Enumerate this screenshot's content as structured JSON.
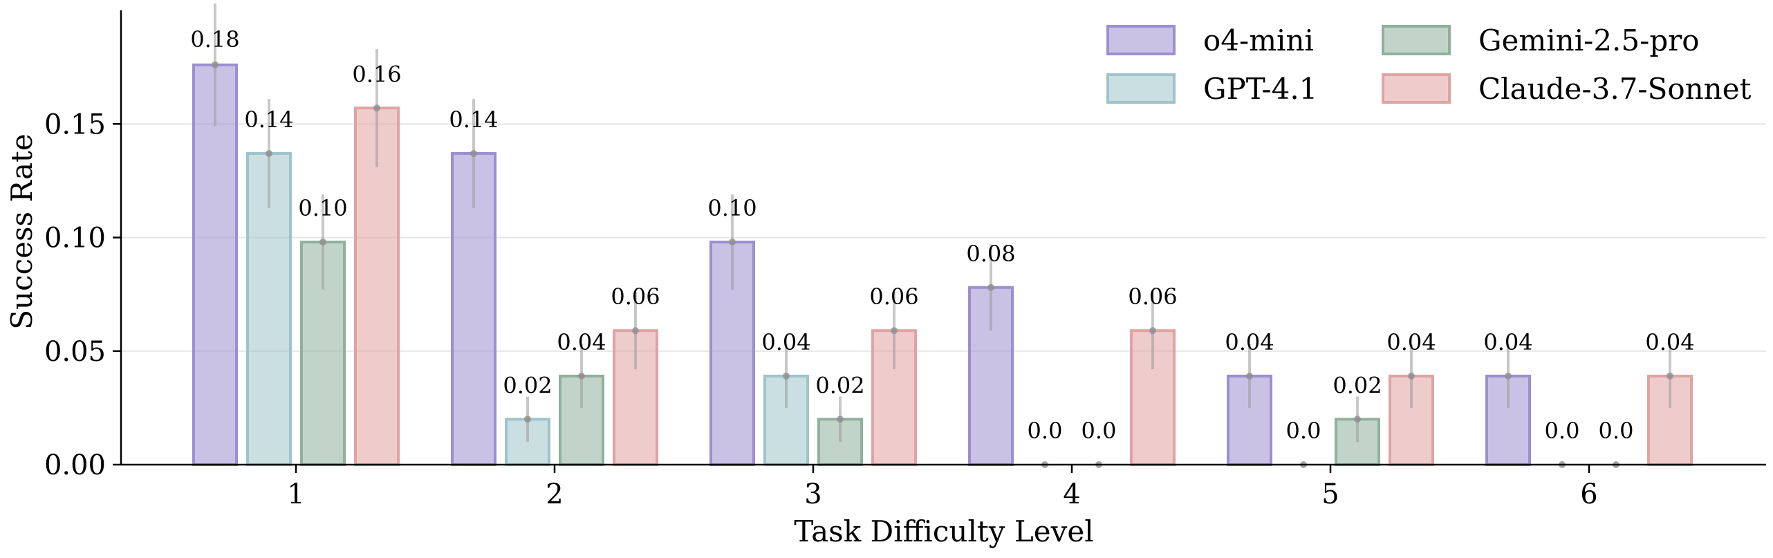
{
  "chart_data": {
    "type": "bar",
    "xlabel": "Task Difficulty Level",
    "ylabel": "Success Rate",
    "categories": [
      "1",
      "2",
      "3",
      "4",
      "5",
      "6"
    ],
    "ylim": [
      0,
      0.2
    ],
    "yticks": [
      0.0,
      0.05,
      0.1,
      0.15
    ],
    "ytick_labels": [
      "0.00",
      "0.05",
      "0.10",
      "0.15"
    ],
    "grid": true,
    "legend_position": "top-right",
    "series": [
      {
        "name": "o4-mini",
        "color": "#9c8fd0",
        "values": [
          0.176,
          0.137,
          0.098,
          0.078,
          0.039,
          0.039
        ],
        "labels": [
          "0.18",
          "0.14",
          "0.10",
          "0.08",
          "0.04",
          "0.04"
        ],
        "err": [
          0.027,
          0.024,
          0.021,
          0.019,
          0.014,
          0.014
        ]
      },
      {
        "name": "GPT-4.1",
        "color": "#9ec4cb",
        "values": [
          0.137,
          0.02,
          0.039,
          0.0,
          0.0,
          0.0
        ],
        "labels": [
          "0.14",
          "0.02",
          "0.04",
          "0.0",
          "0.0",
          "0.0"
        ],
        "err": [
          0.024,
          0.01,
          0.014,
          0.0,
          0.0,
          0.0
        ]
      },
      {
        "name": "Gemini-2.5-pro",
        "color": "#8fb09c",
        "values": [
          0.098,
          0.039,
          0.02,
          0.0,
          0.02,
          0.0
        ],
        "labels": [
          "0.10",
          "0.04",
          "0.02",
          "0.0",
          "0.02",
          "0.0"
        ],
        "err": [
          0.021,
          0.014,
          0.01,
          0.0,
          0.01,
          0.0
        ]
      },
      {
        "name": "Claude-3.7-Sonnet",
        "color": "#e0a3a3",
        "values": [
          0.157,
          0.059,
          0.059,
          0.059,
          0.039,
          0.039
        ],
        "labels": [
          "0.16",
          "0.06",
          "0.06",
          "0.06",
          "0.04",
          "0.04"
        ],
        "err": [
          0.026,
          0.017,
          0.017,
          0.017,
          0.014,
          0.014
        ]
      }
    ]
  }
}
